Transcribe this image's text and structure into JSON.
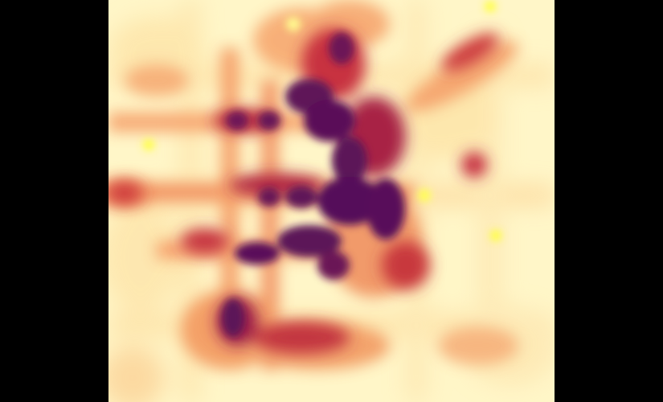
{
  "map": {
    "kind": "density-heatmap",
    "colormap": {
      "name": "magma-like",
      "stops": [
        "#fff9d0",
        "#ffe6a8",
        "#fbb97a",
        "#ee7a50",
        "#d4473f",
        "#a8233f",
        "#6e1459",
        "#56105a"
      ],
      "hotspot_color": "#ffff3a",
      "background": "#fff6c8"
    },
    "legend": null,
    "title": null
  }
}
